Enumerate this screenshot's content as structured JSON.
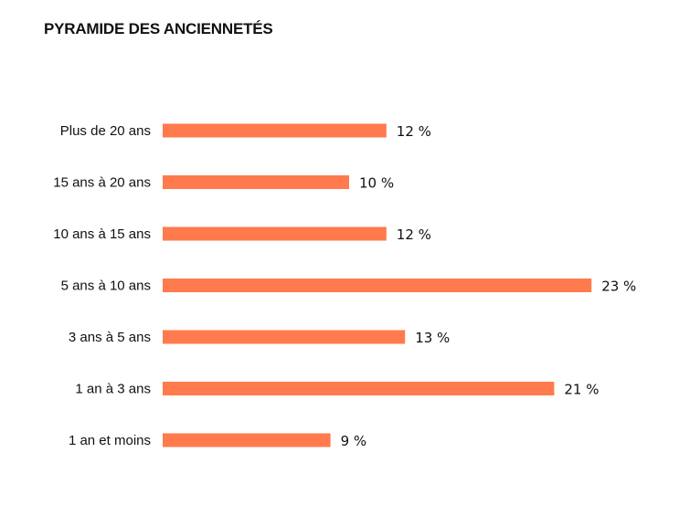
{
  "chart_data": {
    "type": "bar",
    "orientation": "horizontal",
    "title": "PYRAMIDE DES ANCIENNETÉS",
    "categories": [
      "Plus de 20 ans",
      "15 ans à 20 ans",
      "10 ans à 15 ans",
      "5 ans à 10 ans",
      "3 ans à 5 ans",
      "1 an à 3 ans",
      "1 an et moins"
    ],
    "values": [
      12,
      10,
      12,
      23,
      13,
      21,
      9
    ],
    "value_labels": [
      "12 %",
      "10 %",
      "12 %",
      "23 %",
      "13 %",
      "21 %",
      "9 %"
    ],
    "unit": "%",
    "bar_color": "#FF7A4D",
    "xlabel": "",
    "ylabel": "",
    "grid": false,
    "legend": "none"
  }
}
